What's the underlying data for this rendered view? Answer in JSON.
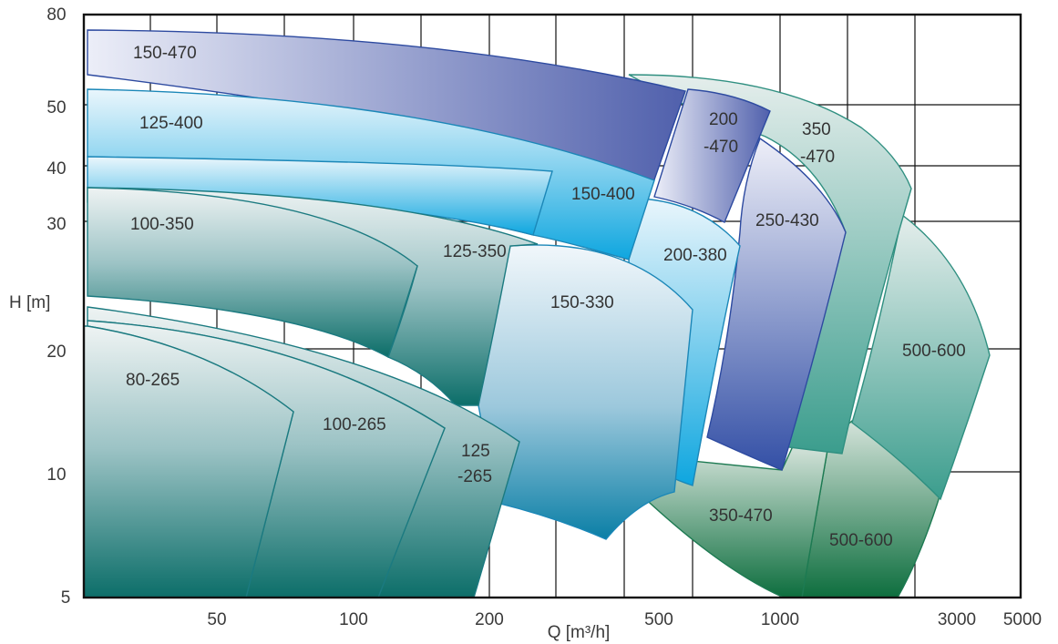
{
  "chart_data": {
    "type": "area",
    "title": "",
    "xlabel": "Q [m³/h]",
    "ylabel": "H [m]",
    "x_scale": "log",
    "y_scale": "log",
    "xlim": [
      20,
      5000
    ],
    "ylim": [
      5,
      80
    ],
    "grid": true,
    "x_tick_labels": [
      "50",
      "100",
      "200",
      "500",
      "1000",
      "3000",
      "5000"
    ],
    "y_tick_labels": [
      "5",
      "10",
      "20",
      "30",
      "40",
      "50",
      "80"
    ],
    "colors": {
      "teal_dark": "#0f6f6a",
      "teal_light": "#e6eeee",
      "cyan": "#18a4d6",
      "cyan_light": "#e3f3fb",
      "violet": "#3a4fa6",
      "violet_light": "#e4e6f4",
      "mint": "#dceae6",
      "mint_dark": "#2f8f80",
      "green_dark": "#0d6e3e",
      "green_light": "#cdded5",
      "grid": "#111111"
    },
    "regions": [
      {
        "label": "500-600",
        "zone": "green"
      },
      {
        "label": "350-470",
        "zone": "green"
      },
      {
        "label": "500-600",
        "zone": "mint"
      },
      {
        "label": "350 -470",
        "zone": "mint"
      },
      {
        "label": "250-430",
        "zone": "violet"
      },
      {
        "label": "200 -470",
        "zone": "violet"
      },
      {
        "label": "150-470",
        "zone": "violet"
      },
      {
        "label": "200-380",
        "zone": "cyan"
      },
      {
        "label": "150-400",
        "zone": "cyan"
      },
      {
        "label": "125-400",
        "zone": "cyan"
      },
      {
        "label": "150-330",
        "zone": "cyan"
      },
      {
        "label": "125-350",
        "zone": "teal"
      },
      {
        "label": "100-350",
        "zone": "teal"
      },
      {
        "label": "125 -265",
        "zone": "teal"
      },
      {
        "label": "100-265",
        "zone": "teal"
      },
      {
        "label": "80-265",
        "zone": "teal"
      }
    ]
  }
}
